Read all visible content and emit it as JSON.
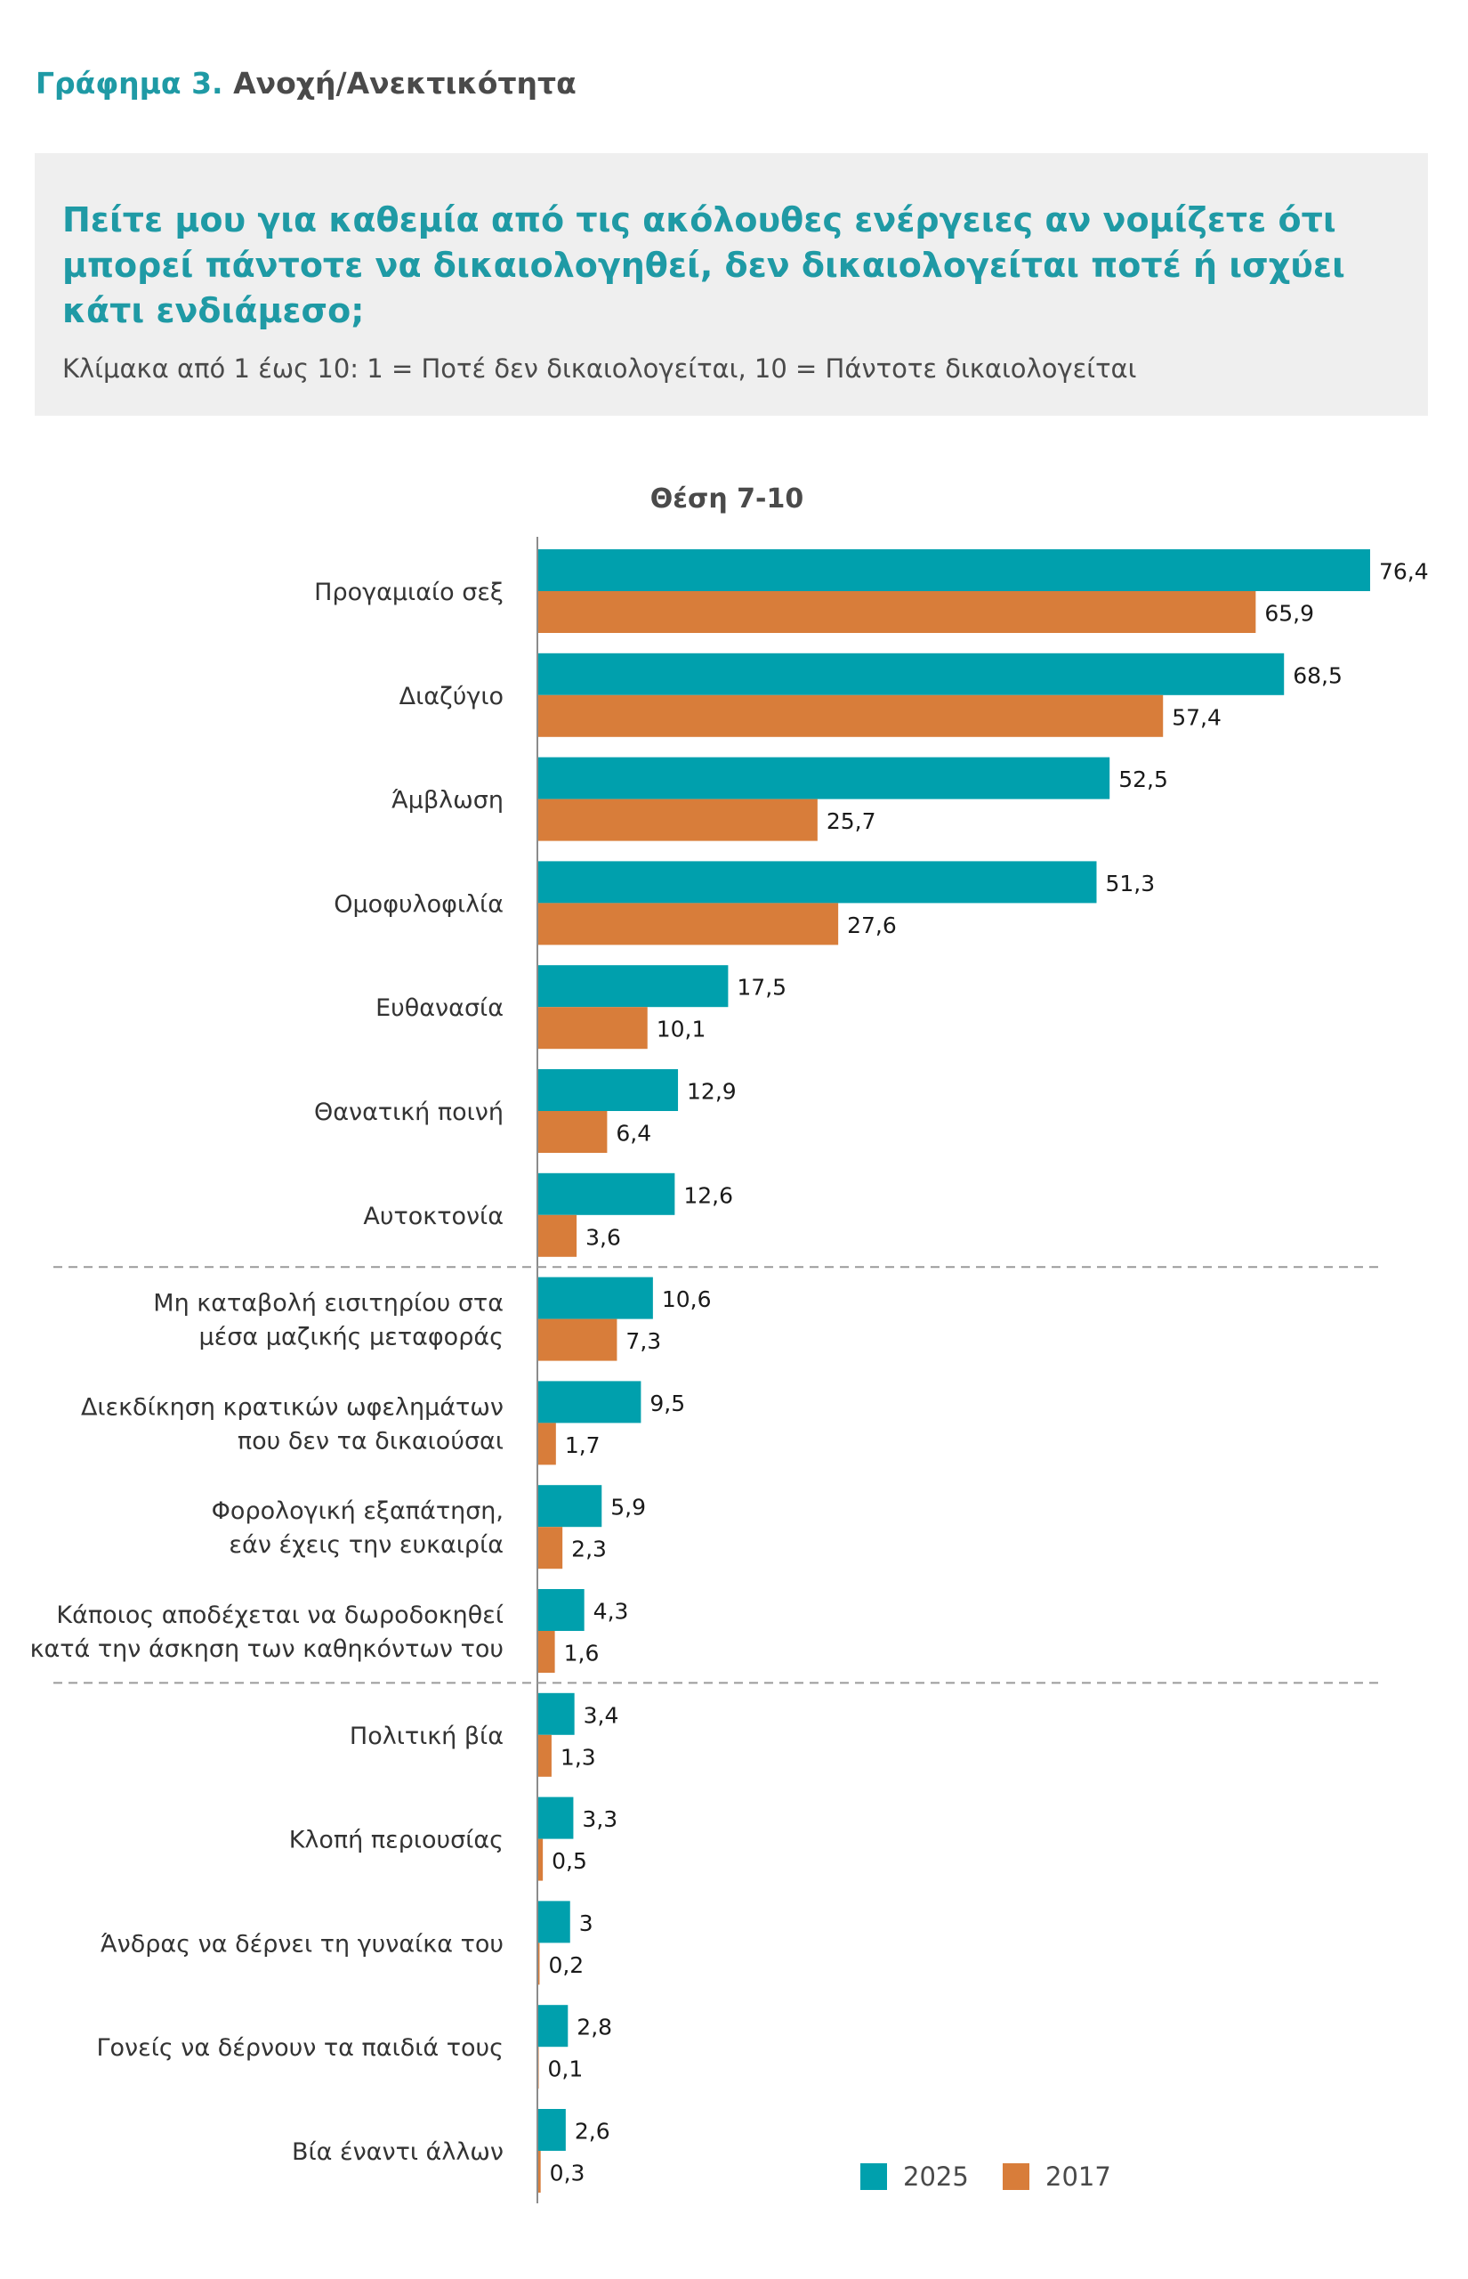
{
  "figure": {
    "number": "Γράφημα 3.",
    "name": "Ανοχή/Ανεκτικότητα"
  },
  "question": {
    "text": "Πείτε μου για καθεμία από τις ακόλουθες ενέργειες αν νομίζετε ότι μπορεί πάντοτε να δικαιολογηθεί, δεν δικαιολογείται ποτέ ή ισχύει κάτι ενδιάμεσο;",
    "scale_note": "Κλίμακα από 1 έως 10: 1 = Ποτέ δεν δικαιολογείται, 10 = Πάντοτε δικαιολογείται"
  },
  "colors": {
    "series_2025": "#00a0ad",
    "series_2017": "#d87d3a",
    "title_teal": "#1f9aa5",
    "divider": "#9a9a9a"
  },
  "chart_data": {
    "type": "bar",
    "orientation": "horizontal",
    "title": "Θέση 7-10",
    "xlabel": "",
    "ylabel": "",
    "xlim": [
      0,
      76.4
    ],
    "grid": false,
    "legend_position": "bottom-right",
    "categories": [
      "Προγαμιαίο σεξ",
      "Διαζύγιο",
      "Άμβλωση",
      "Ομοφυλοφιλία",
      "Ευθανασία",
      "Θανατική ποινή",
      "Αυτοκτονία",
      "Μη καταβολή εισιτηρίου στα μέσα μαζικής μεταφοράς",
      "Διεκδίκηση κρατικών ωφελημάτων που δεν τα δικαιούσαι",
      "Φορολογική εξαπάτηση, εάν έχεις την ευκαιρία",
      "Κάποιος αποδέχεται να δωροδοκηθεί κατά την άσκηση των καθηκόντων του",
      "Πολιτική βία",
      "Κλοπή περιουσίας",
      "Άνδρας να δέρνει τη γυναίκα του",
      "Γονείς να δέρνουν τα παιδιά τους",
      "Βία έναντι άλλων"
    ],
    "category_lines": [
      [
        "Προγαμιαίο σεξ"
      ],
      [
        "Διαζύγιο"
      ],
      [
        "Άμβλωση"
      ],
      [
        "Ομοφυλοφιλία"
      ],
      [
        "Ευθανασία"
      ],
      [
        "Θανατική ποινή"
      ],
      [
        "Αυτοκτονία"
      ],
      [
        "Μη καταβολή εισιτηρίου στα",
        "μέσα μαζικής μεταφοράς"
      ],
      [
        "Διεκδίκηση κρατικών ωφελημάτων",
        "που δεν τα δικαιούσαι"
      ],
      [
        "Φορολογική εξαπάτηση,",
        "εάν έχεις την ευκαιρία"
      ],
      [
        "Κάποιος αποδέχεται να δωροδοκηθεί",
        "κατά την άσκηση των καθηκόντων του"
      ],
      [
        "Πολιτική βία"
      ],
      [
        "Κλοπή περιουσίας"
      ],
      [
        "Άνδρας να δέρνει τη γυναίκα του"
      ],
      [
        "Γονείς να δέρνουν τα παιδιά τους"
      ],
      [
        "Βία έναντι άλλων"
      ]
    ],
    "group_breaks_after": [
      6,
      10
    ],
    "series": [
      {
        "name": "2025",
        "values": [
          76.4,
          68.5,
          52.5,
          51.3,
          17.5,
          12.9,
          12.6,
          10.6,
          9.5,
          5.9,
          4.3,
          3.4,
          3.3,
          3,
          2.8,
          2.6
        ],
        "labels": [
          "76,4",
          "68,5",
          "52,5",
          "51,3",
          "17,5",
          "12,9",
          "12,6",
          "10,6",
          "9,5",
          "5,9",
          "4,3",
          "3,4",
          "3,3",
          "3",
          "2,8",
          "2,6"
        ]
      },
      {
        "name": "2017",
        "values": [
          65.9,
          57.4,
          25.7,
          27.6,
          10.1,
          6.4,
          3.6,
          7.3,
          1.7,
          2.3,
          1.6,
          1.3,
          0.5,
          0.2,
          0.1,
          0.3
        ],
        "labels": [
          "65,9",
          "57,4",
          "25,7",
          "27,6",
          "10,1",
          "6,4",
          "3,6",
          "7,3",
          "1,7",
          "2,3",
          "1,6",
          "1,3",
          "0,5",
          "0,2",
          "0,1",
          "0,3"
        ]
      }
    ]
  }
}
